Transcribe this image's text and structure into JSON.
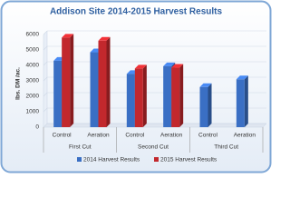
{
  "chart_data": {
    "type": "bar",
    "title": "Addison Site 2014-2015 Harvest Results",
    "y_label": "lbs. DM /ac.",
    "categories": [
      "Control",
      "Aeration",
      "Control",
      "Aeration",
      "Control",
      "Aeration"
    ],
    "groups": [
      "First Cut",
      "Second Cut",
      "Third Cut"
    ],
    "series": [
      {
        "name": "2014 Harvest Results",
        "color": "#3a6fc4",
        "values": [
          4300,
          4850,
          3450,
          3950,
          2600,
          3100
        ]
      },
      {
        "name": "2015 Harvest Results",
        "color": "#c2282d",
        "values": [
          5800,
          5600,
          3800,
          3850,
          null,
          null
        ]
      }
    ],
    "ylim": [
      0,
      6000
    ],
    "yticks": [
      0,
      1000,
      2000,
      3000,
      4000,
      5000,
      6000
    ],
    "grid": true
  }
}
